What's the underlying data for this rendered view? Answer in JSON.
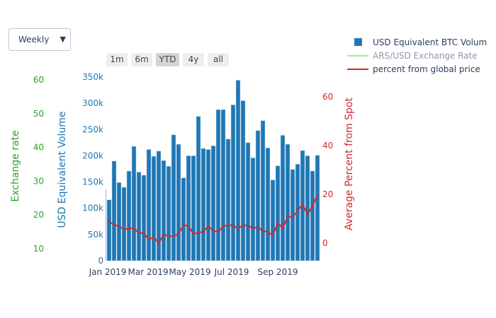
{
  "dropdown": {
    "selected": "Weekly"
  },
  "range_selector": {
    "buttons": [
      "1m",
      "6m",
      "YTD",
      "4y",
      "all"
    ],
    "active": "YTD"
  },
  "legend": {
    "items": [
      {
        "label": "USD Equivalent BTC Volum",
        "color": "#1f77b4",
        "type": "bar",
        "visible": true
      },
      {
        "label": "ARS/USD Exchange Rate",
        "color": "#98df8a",
        "type": "line",
        "visible": false
      },
      {
        "label": "percent from global price",
        "color": "#d62728",
        "type": "line",
        "visible": true
      }
    ]
  },
  "chart_data": {
    "type": "bar",
    "x_ticks": [
      "Jan 2019",
      "Mar 2019",
      "May 2019",
      "Jul 2019",
      "Sep 2019"
    ],
    "y_left_volume": {
      "title": "USD Equivalent Volume",
      "ticks": [
        "0",
        "50k",
        "100k",
        "150k",
        "200k",
        "250k",
        "300k",
        "350k"
      ],
      "range": [
        0,
        350000
      ],
      "color": "#1f77b4"
    },
    "y_left_exchange": {
      "title": "Exchange rate",
      "ticks": [
        "10",
        "20",
        "30",
        "40",
        "50",
        "60"
      ],
      "color": "#2ca02c"
    },
    "y_right": {
      "title": "Average Percent from Spot",
      "ticks": [
        "0",
        "20",
        "40",
        "60"
      ],
      "range": [
        -7,
        68
      ],
      "color": "#d62728"
    },
    "series": [
      {
        "name": "USD Equivalent BTC Volum",
        "type": "bar",
        "values": [
          116000,
          190000,
          149000,
          140000,
          171000,
          218000,
          169000,
          163000,
          212000,
          199000,
          209000,
          191000,
          180000,
          240000,
          222000,
          158000,
          200000,
          200000,
          275000,
          214000,
          212000,
          219000,
          288000,
          288000,
          232000,
          297000,
          344000,
          305000,
          225000,
          196000,
          248000,
          267000,
          215000,
          154000,
          181000,
          239000,
          222000,
          174000,
          184000,
          210000,
          200000,
          171000,
          201000
        ]
      },
      {
        "name": "percent from global price",
        "type": "line",
        "values": [
          8.9,
          7.4,
          7.0,
          5.5,
          6.0,
          6.0,
          4.1,
          4.1,
          1.4,
          2.5,
          0,
          3.4,
          3.0,
          2.7,
          3.9,
          7.4,
          7.0,
          3.7,
          4.3,
          4.6,
          7.0,
          5.0,
          4.6,
          6.8,
          7.4,
          7.2,
          6.1,
          7.2,
          7.2,
          6.1,
          6.5,
          5.0,
          4.6,
          3.1,
          8.4,
          6.0,
          11.0,
          10.6,
          13.3,
          15.9,
          11.8,
          15.2,
          19.8
        ]
      }
    ]
  }
}
